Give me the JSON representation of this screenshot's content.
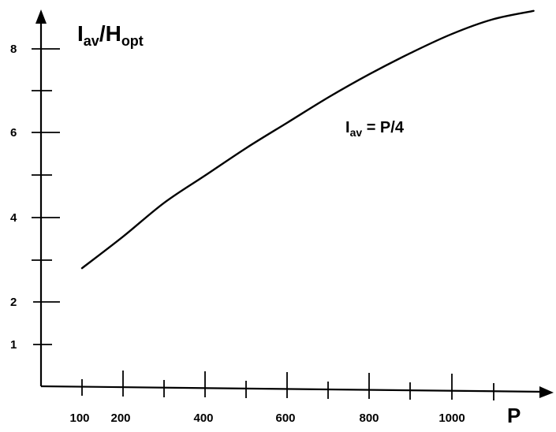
{
  "chart_data": {
    "type": "line",
    "title": "",
    "xlabel": "P",
    "ylabel": {
      "main": "I",
      "sub": "av",
      "slash": "/H",
      "sub2": "opt"
    },
    "annotation": {
      "main": "I",
      "sub": "av",
      "rest": " = P/4"
    },
    "x_tick_labels": [
      "100",
      "200",
      "400",
      "600",
      "800",
      "1000"
    ],
    "y_tick_labels": [
      "1",
      "2",
      "4",
      "6",
      "8"
    ],
    "xlim": [
      0,
      1250
    ],
    "ylim": [
      0,
      9
    ],
    "grid": false,
    "legend": "none",
    "series": [
      {
        "x": [
          100,
          200,
          300,
          400,
          500,
          600,
          700,
          800,
          900,
          1000,
          1100,
          1200
        ],
        "y": [
          2.8,
          3.55,
          4.35,
          5.0,
          5.65,
          6.25,
          6.85,
          7.4,
          7.9,
          8.35,
          8.7,
          8.9
        ]
      }
    ]
  }
}
